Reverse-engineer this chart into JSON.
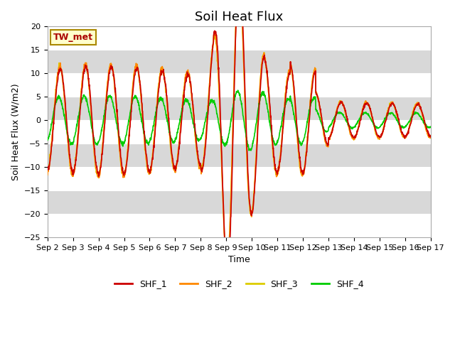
{
  "title": "Soil Heat Flux",
  "ylabel": "Soil Heat Flux (W/m2)",
  "xlabel": "Time",
  "ylim": [
    -25,
    20
  ],
  "yticks": [
    -25,
    -20,
    -15,
    -10,
    -5,
    0,
    5,
    10,
    15,
    20
  ],
  "x_day_labels": [
    "Sep 2",
    "Sep 3",
    "Sep 4",
    "Sep 5",
    "Sep 6",
    "Sep 7",
    "Sep 8",
    "Sep 9",
    "Sep 10",
    "Sep 11",
    "Sep 12",
    "Sep 13",
    "Sep 14",
    "Sep 15",
    "Sep 16",
    "Sep 17"
  ],
  "line_colors": {
    "SHF_1": "#cc0000",
    "SHF_2": "#ff8800",
    "SHF_3": "#ddcc00",
    "SHF_4": "#00cc00"
  },
  "station_label": "TW_met",
  "station_label_color": "#aa0000",
  "station_box_facecolor": "#ffffcc",
  "station_box_edgecolor": "#aa8800",
  "bg_band_color": "#d8d8d8",
  "title_fontsize": 13,
  "axis_fontsize": 9,
  "tick_fontsize": 8,
  "legend_fontsize": 9,
  "line_width": 1.2
}
